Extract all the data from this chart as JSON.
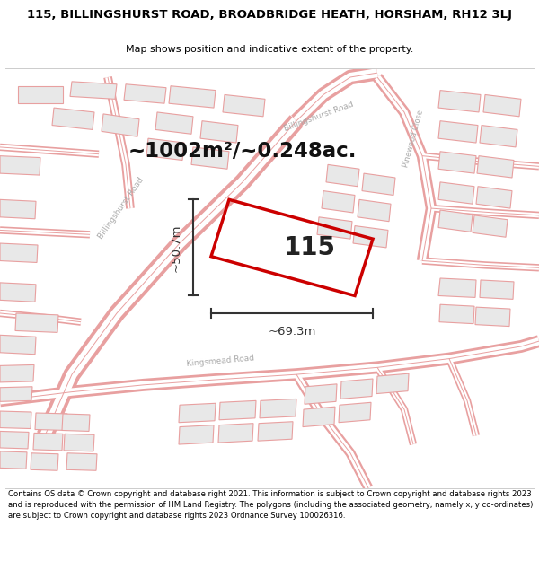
{
  "title_line1": "115, BILLINGSHURST ROAD, BROADBRIDGE HEATH, HORSHAM, RH12 3LJ",
  "title_line2": "Map shows position and indicative extent of the property.",
  "area_text": "~1002m²/~0.248ac.",
  "dim_width": "~69.3m",
  "dim_height": "~50.7m",
  "label": "115",
  "footer_text": "Contains OS data © Crown copyright and database right 2021. This information is subject to Crown copyright and database rights 2023 and is reproduced with the permission of HM Land Registry. The polygons (including the associated geometry, namely x, y co-ordinates) are subject to Crown copyright and database rights 2023 Ordnance Survey 100026316.",
  "map_bg": "#ffffff",
  "street_color": "#e8a0a0",
  "building_fill": "#e8e8e8",
  "building_edge": "#e8a0a0",
  "plot_color": "#cc0000",
  "dim_color": "#333333",
  "street_label_color": "#aaaaaa",
  "fig_width": 6.0,
  "fig_height": 6.25
}
